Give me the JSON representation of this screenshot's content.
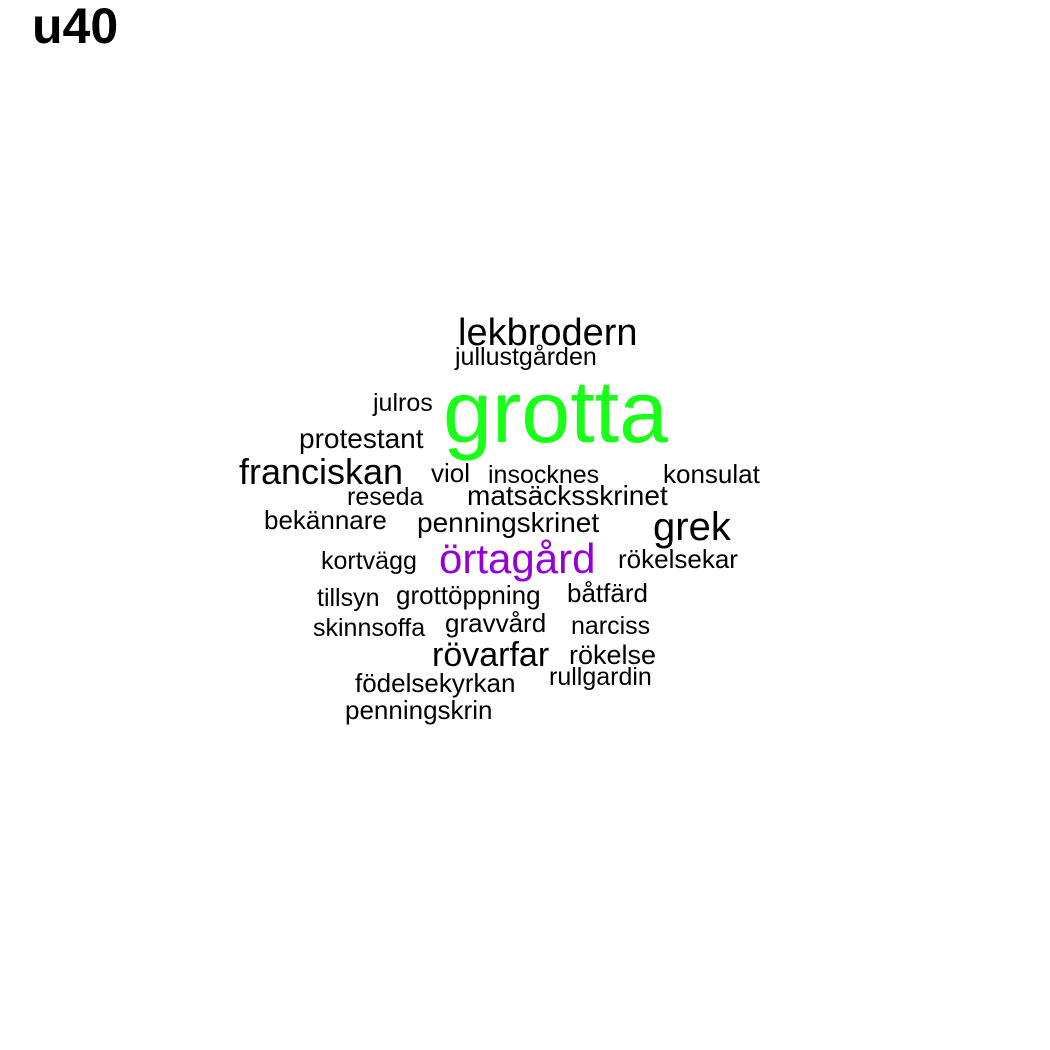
{
  "title": "u40",
  "colors": {
    "default": "#000000",
    "highlight_green": "#1aff1a",
    "highlight_purple": "#9400d3"
  },
  "words": [
    {
      "text": "lekbrodern",
      "color": "#000000"
    },
    {
      "text": "jullustgården",
      "color": "#000000"
    },
    {
      "text": "julros",
      "color": "#000000"
    },
    {
      "text": "grotta",
      "color": "#1aff1a"
    },
    {
      "text": "protestant",
      "color": "#000000"
    },
    {
      "text": "franciskan",
      "color": "#000000"
    },
    {
      "text": "viol",
      "color": "#000000"
    },
    {
      "text": "insocknes",
      "color": "#000000"
    },
    {
      "text": "konsulat",
      "color": "#000000"
    },
    {
      "text": "reseda",
      "color": "#000000"
    },
    {
      "text": "matsäcksskrinet",
      "color": "#000000"
    },
    {
      "text": "bekännare",
      "color": "#000000"
    },
    {
      "text": "penningskrinet",
      "color": "#000000"
    },
    {
      "text": "grek",
      "color": "#000000"
    },
    {
      "text": "kortvägg",
      "color": "#000000"
    },
    {
      "text": "örtagård",
      "color": "#9400d3"
    },
    {
      "text": "rökelsekar",
      "color": "#000000"
    },
    {
      "text": "tillsyn",
      "color": "#000000"
    },
    {
      "text": "grottöppning",
      "color": "#000000"
    },
    {
      "text": "båtfärd",
      "color": "#000000"
    },
    {
      "text": "skinnsoffa",
      "color": "#000000"
    },
    {
      "text": "gravvård",
      "color": "#000000"
    },
    {
      "text": "narciss",
      "color": "#000000"
    },
    {
      "text": "rövarfar",
      "color": "#000000"
    },
    {
      "text": "rökelse",
      "color": "#000000"
    },
    {
      "text": "födelsekyrkan",
      "color": "#000000"
    },
    {
      "text": "rullgardin",
      "color": "#000000"
    },
    {
      "text": "penningskrin",
      "color": "#000000"
    }
  ]
}
